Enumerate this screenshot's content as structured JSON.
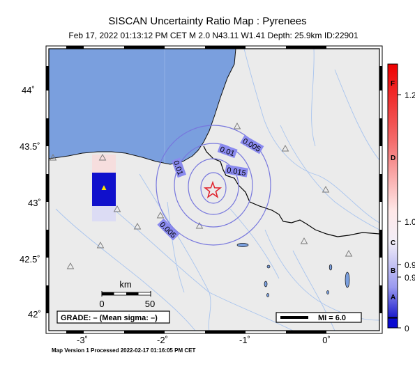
{
  "header": {
    "title": "SISCAN Uncertainty Ratio Map : Pyrenees",
    "subtitle": "Feb 17, 2022 01:13:12 PM CET   M 2.0   N43.11 W1.41   Depth: 25.9km   ID:22901"
  },
  "axes": {
    "lat_ticks": [
      "44˚",
      "43.5˚",
      "43˚",
      "42.5˚",
      "42˚"
    ],
    "lon_ticks": [
      "-3˚",
      "-2˚",
      "-1˚",
      "0˚"
    ]
  },
  "contours": [
    "0.01",
    "0.005",
    "0.01",
    "0.015",
    "0.005"
  ],
  "scale_bar": {
    "unit": "km",
    "labels": [
      "0",
      "50"
    ]
  },
  "grade": "GRADE: – (Mean sigma: –)",
  "mi_legend": "MI = 6.0",
  "colorbar": {
    "letters": [
      "F",
      "D",
      "C",
      "B",
      "A"
    ],
    "values": [
      "1.2",
      "1.0",
      "0.9",
      "0.9",
      "0"
    ]
  },
  "footer": "Map Version 1 Processed 2022-02-17 01:16:05 PM CET",
  "colors": {
    "sea": "#7a9fde",
    "land": "#ebebeb",
    "border": "#000000",
    "epicenter": "#e0202a",
    "contour": "#7777dd",
    "contour_label_bg": "#8a8aef",
    "station_blue": "#0a0ad0",
    "station_marker": "#ffe600"
  }
}
